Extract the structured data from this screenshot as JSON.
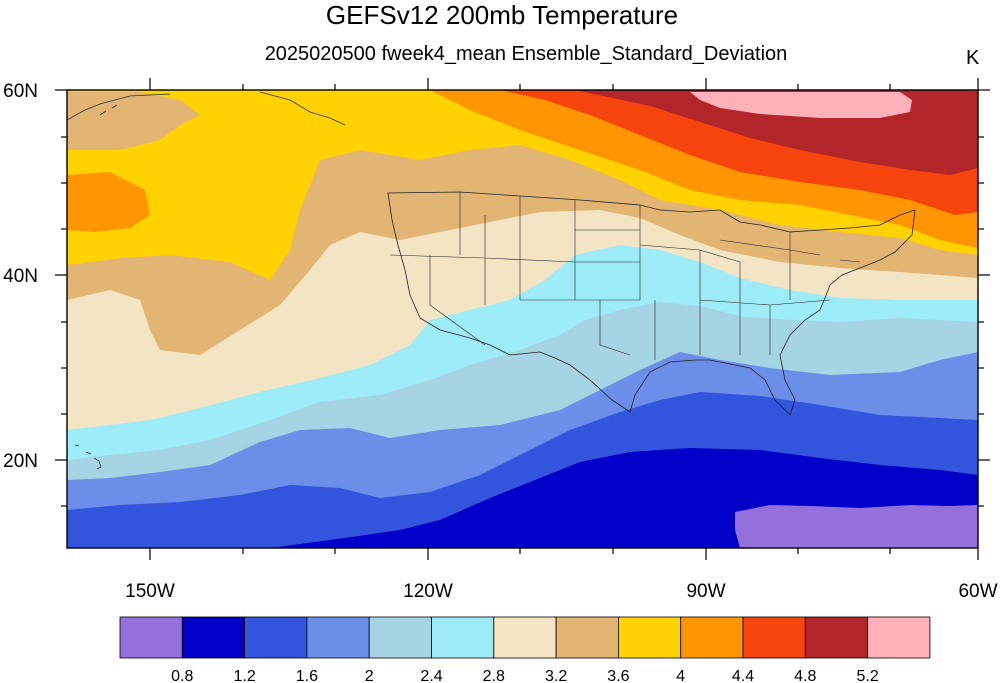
{
  "header": {
    "title": "GEFSv12 200mb Temperature",
    "subtitle": "2025020500 fweek4_mean Ensemble_Standard_Deviation",
    "units": "K"
  },
  "map": {
    "lat_range": [
      10,
      60
    ],
    "lon_range": [
      -160,
      -60
    ],
    "lat_labels": [
      {
        "lat": 60,
        "text": "60N"
      },
      {
        "lat": 40,
        "text": "40N"
      },
      {
        "lat": 20,
        "text": "20N"
      }
    ],
    "lon_labels": [
      {
        "lon": -150,
        "text": "150W"
      },
      {
        "lon": -120,
        "text": "120W"
      },
      {
        "lon": -90,
        "text": "90W"
      },
      {
        "lon": -60,
        "text": "60W"
      }
    ],
    "field_variable": "Ensemble standard deviation of 200mb temperature"
  },
  "colorbar": {
    "levels": [
      "0.8",
      "1.2",
      "1.6",
      "2",
      "2.4",
      "2.8",
      "3.2",
      "3.6",
      "4",
      "4.4",
      "4.8",
      "5.2"
    ],
    "colors": [
      "#9370db",
      "#0000c8",
      "#3355dd",
      "#6b8fe8",
      "#a6d4e4",
      "#9eecf7",
      "#f3e4c4",
      "#e3b574",
      "#ffd200",
      "#ff9500",
      "#f5450c",
      "#b2262a",
      "#ffb0b8"
    ]
  },
  "chart_data": {
    "type": "heatmap",
    "title": "GEFSv12 200mb Temperature",
    "subtitle": "2025020500 fweek4_mean Ensemble_Standard_Deviation",
    "units": "K",
    "x_ticks": [
      "150W",
      "120W",
      "90W",
      "60W"
    ],
    "y_ticks": [
      "60N",
      "40N",
      "20N"
    ],
    "contour_levels": [
      0.8,
      1.2,
      1.6,
      2,
      2.4,
      2.8,
      3.2,
      3.6,
      4,
      4.4,
      4.8,
      5.2
    ]
  }
}
